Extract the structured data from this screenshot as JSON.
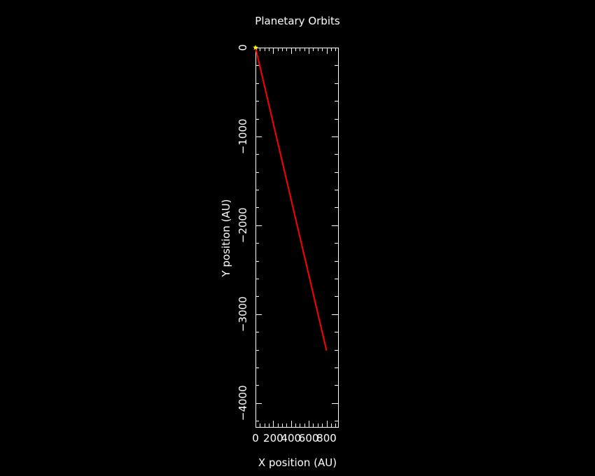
{
  "chart_data": {
    "type": "line",
    "title": "Planetary Orbits",
    "xlabel": "X position (AU)",
    "ylabel": "Y position (AU)",
    "xlim": [
      0,
      930
    ],
    "ylim": [
      -4270,
      0
    ],
    "x_ticks": [
      0,
      200,
      400,
      600,
      800
    ],
    "x_tick_labels": [
      "0",
      "200",
      "400",
      "600",
      "800"
    ],
    "y_ticks": [
      0,
      -1000,
      -2000,
      -3000,
      -4000
    ],
    "y_tick_labels": [
      "0",
      "−1000",
      "−2000",
      "−3000",
      "−4000"
    ],
    "grid": false,
    "series": [
      {
        "color": "#ff0000",
        "x": [
          0,
          800
        ],
        "y": [
          0,
          -3410
        ]
      }
    ],
    "markers": [
      {
        "color": "#ffff00",
        "symbol": "star",
        "x": 0,
        "y": 0
      }
    ]
  }
}
